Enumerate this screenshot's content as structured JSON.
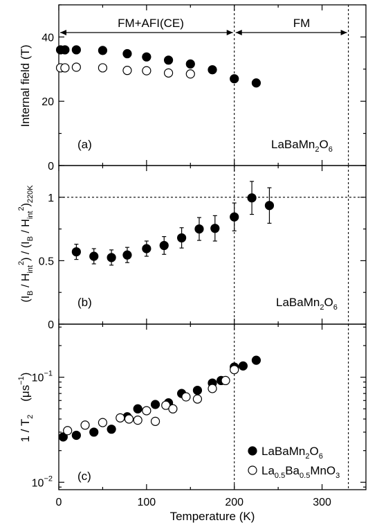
{
  "chart_data": [
    {
      "type": "scatter",
      "panel_label": "(a)",
      "compound": {
        "pre": "LaBaMn",
        "sub1": "2",
        "mid": "O",
        "sub2": "6"
      },
      "ylabel": "Internal field   (T)",
      "xlim": [
        0,
        350
      ],
      "ylim": [
        0,
        50
      ],
      "yticks": [
        0,
        20,
        40
      ],
      "region_labels": [
        "FM+AFI(CE)",
        "FM"
      ],
      "region_bounds": [
        0,
        200,
        330
      ],
      "vlines": [
        200,
        330
      ],
      "series": [
        {
          "marker": "filled",
          "x": [
            2,
            7,
            20,
            50,
            78,
            100,
            125,
            150,
            175,
            200,
            225
          ],
          "y": [
            36,
            36,
            36,
            35.8,
            34.8,
            33.8,
            32.8,
            31.6,
            29.8,
            27,
            25.7
          ]
        },
        {
          "marker": "open",
          "x": [
            2,
            7,
            20,
            50,
            78,
            100,
            125,
            150
          ],
          "y": [
            30.4,
            30.4,
            30.6,
            30.4,
            29.6,
            29.5,
            28.8,
            28.5
          ]
        }
      ]
    },
    {
      "type": "scatter",
      "panel_label": "(b)",
      "compound": {
        "pre": "LaBaMn",
        "sub1": "2",
        "mid": "O",
        "sub2": "6"
      },
      "ylabel": {
        "p1": "(I",
        "s1": "B",
        "p2": " / H",
        "s2": "int",
        "u1": "2",
        "p3": ") / (I",
        "s3": "B",
        "p4": " / H",
        "s4": "int",
        "u2": "2",
        "p5": ")",
        "s5": "220K"
      },
      "xlim": [
        0,
        350
      ],
      "ylim": [
        0,
        1.25
      ],
      "yticks": [
        0,
        0.5,
        1
      ],
      "ytick_labels": [
        "0",
        "0.5",
        "1"
      ],
      "hline": 1,
      "vlines": [
        200,
        330
      ],
      "series": [
        {
          "marker": "filled",
          "x": [
            20,
            40,
            60,
            78,
            100,
            120,
            140,
            160,
            178,
            200,
            220,
            240
          ],
          "y": [
            0.57,
            0.535,
            0.525,
            0.545,
            0.595,
            0.62,
            0.68,
            0.75,
            0.755,
            0.845,
            0.995,
            0.935
          ],
          "err": [
            0.06,
            0.06,
            0.06,
            0.06,
            0.06,
            0.07,
            0.08,
            0.09,
            0.1,
            0.11,
            0.13,
            0.14
          ]
        }
      ]
    },
    {
      "type": "scatter",
      "panel_label": "(c)",
      "ylabel": {
        "main": "1 / T",
        "sub": "2",
        "unit1": "(μs",
        "sup": "−1",
        "unit2": ")"
      },
      "xlabel": "Temperature   (K)",
      "xlim": [
        0,
        350
      ],
      "xticks": [
        0,
        100,
        200,
        300
      ],
      "xtick_labels": [
        "0",
        "100",
        "200",
        "300"
      ],
      "yscale": "log",
      "ylim": [
        0.0085,
        0.32
      ],
      "yticks": [
        0.01,
        0.1
      ],
      "ytick_labels": [
        {
          "base": "10",
          "exp": "−2"
        },
        {
          "base": "10",
          "exp": "−1"
        }
      ],
      "vlines": [
        200,
        330
      ],
      "legend": [
        {
          "marker": "filled",
          "pre": "LaBaMn",
          "sub1": "2",
          "mid": "O",
          "sub2": "6"
        },
        {
          "marker": "open",
          "pre": "La",
          "sub1": "0.5",
          "mid": "Ba",
          "sub2": "0.5",
          "post": "MnO",
          "sub3": "3"
        }
      ],
      "series": [
        {
          "marker": "filled",
          "x": [
            5,
            20,
            40,
            60,
            78,
            90,
            110,
            125,
            140,
            158,
            175,
            185,
            200,
            210,
            225
          ],
          "y": [
            0.027,
            0.028,
            0.03,
            0.032,
            0.042,
            0.05,
            0.055,
            0.057,
            0.07,
            0.075,
            0.088,
            0.093,
            0.125,
            0.128,
            0.145
          ]
        },
        {
          "marker": "open",
          "x": [
            10,
            30,
            50,
            70,
            80,
            90,
            100,
            110,
            122,
            130,
            145,
            158,
            175,
            190,
            200
          ],
          "y": [
            0.031,
            0.035,
            0.037,
            0.041,
            0.04,
            0.039,
            0.048,
            0.038,
            0.054,
            0.05,
            0.065,
            0.062,
            0.078,
            0.093,
            0.118
          ]
        }
      ]
    }
  ]
}
